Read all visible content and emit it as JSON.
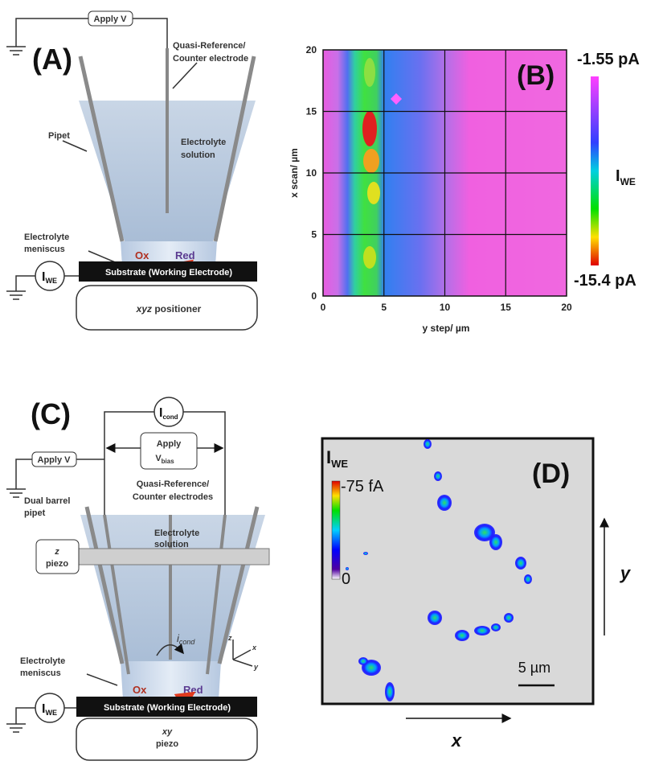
{
  "panel_a": {
    "label": "(A)",
    "apply": "Apply V",
    "ref_lines": [
      "Quasi-Reference/",
      "Counter electrode"
    ],
    "pipet": "Pipet",
    "electrolyte_lines": [
      "Electrolyte",
      "solution"
    ],
    "meniscus_lines": [
      "Electrolyte",
      "meniscus"
    ],
    "ox": "Ox",
    "red": "Red",
    "iwe": "I",
    "iwe_sub": "WE",
    "substrate": "Substrate (Working Electrode)",
    "positioner_italic": "xyz",
    "positioner": "positioner"
  },
  "panel_b": {
    "label": "(B)",
    "x_axis_label": "y step/ µm",
    "y_axis_label": "x scan/ µm",
    "xticks": [
      "0",
      "5",
      "10",
      "15",
      "20"
    ],
    "yticks": [
      "0",
      "5",
      "10",
      "15",
      "20"
    ],
    "colorbar_top": "-1.55 pA",
    "colorbar_bottom": "-15.4 pA",
    "colorbar_label": "I",
    "colorbar_label_sub": "WE"
  },
  "panel_c": {
    "label": "(C)",
    "icond": "I",
    "icond_sub": "cond",
    "apply_bias": [
      "Apply",
      "V"
    ],
    "apply_bias_sub": "bias",
    "apply": "Apply V",
    "ref_lines": [
      "Quasi-Reference/",
      "Counter electrodes"
    ],
    "pipet_lines": [
      "Dual barrel",
      "pipet"
    ],
    "electrolyte_lines": [
      "Electrolyte",
      "solution"
    ],
    "piezo_z": [
      "z",
      "piezo"
    ],
    "icond_label": "i",
    "icond_label_sub": "cond",
    "meniscus_lines": [
      "Electrolyte",
      "meniscus"
    ],
    "ox": "Ox",
    "red": "Red",
    "axes": [
      "z",
      "x",
      "y"
    ],
    "iwe": "I",
    "iwe_sub": "WE",
    "substrate": "Substrate (Working Electrode)",
    "piezo_xy": [
      "xy",
      "piezo"
    ]
  },
  "panel_d": {
    "label": "(D)",
    "cb_label": "I",
    "cb_sub": "WE",
    "cb_top": "-75 fA",
    "cb_bottom": "0",
    "scale": "5 µm",
    "x": "x",
    "y": "y"
  }
}
